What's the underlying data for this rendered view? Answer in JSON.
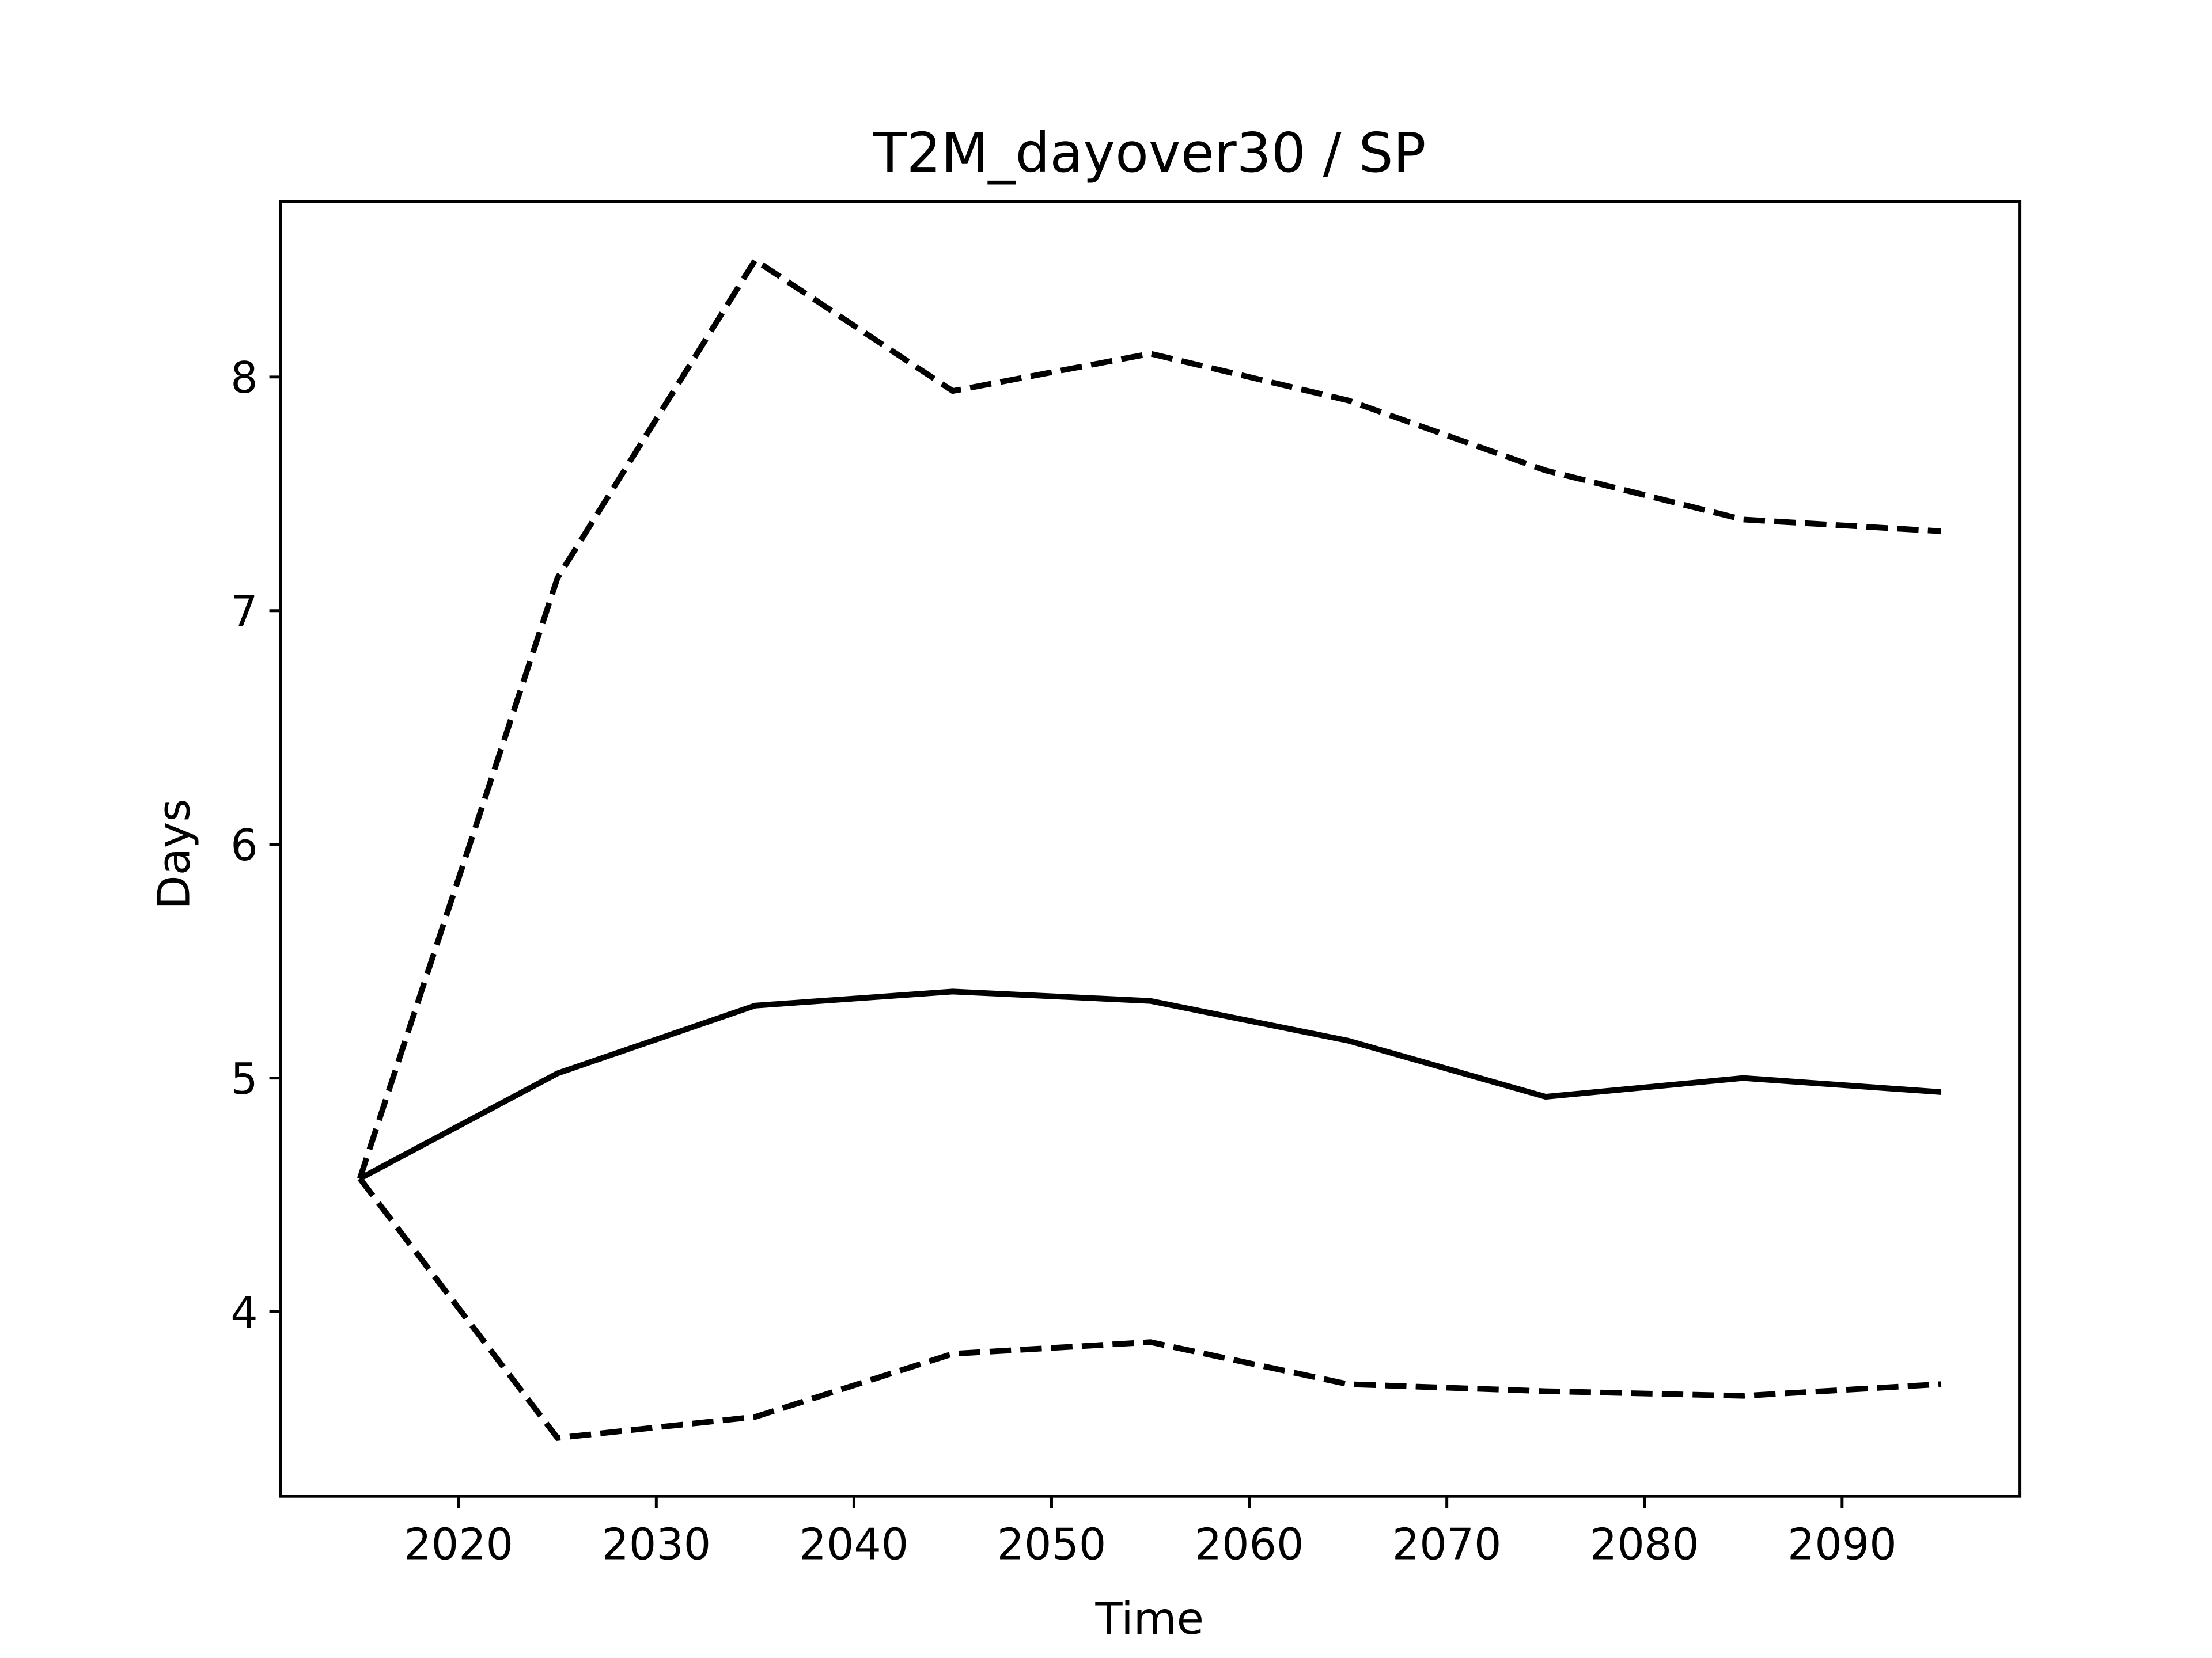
{
  "chart_data": {
    "type": "line",
    "title": "T2M_dayover30 / SP",
    "xlabel": "Time",
    "ylabel": "Days",
    "x": [
      2015,
      2025,
      2035,
      2045,
      2055,
      2065,
      2075,
      2085,
      2095
    ],
    "series": [
      {
        "color": "#000000",
        "linestyle": "solid",
        "values": [
          4.57,
          5.02,
          5.31,
          5.37,
          5.33,
          5.16,
          4.92,
          5.0,
          4.94
        ]
      },
      {
        "color": "#000000",
        "linestyle": "dashed",
        "values": [
          4.57,
          7.14,
          8.5,
          7.94,
          8.1,
          7.9,
          7.6,
          7.39,
          7.34
        ]
      },
      {
        "color": "#000000",
        "linestyle": "dashed",
        "values": [
          4.57,
          3.46,
          3.55,
          3.82,
          3.87,
          3.69,
          3.66,
          3.64,
          3.69
        ]
      }
    ],
    "xlim": [
      2011,
      2099
    ],
    "ylim": [
      3.21,
      8.75
    ],
    "xticks": [
      2020,
      2030,
      2040,
      2050,
      2060,
      2070,
      2080,
      2090
    ],
    "yticks": [
      4,
      5,
      6,
      7,
      8
    ],
    "grid": false
  }
}
